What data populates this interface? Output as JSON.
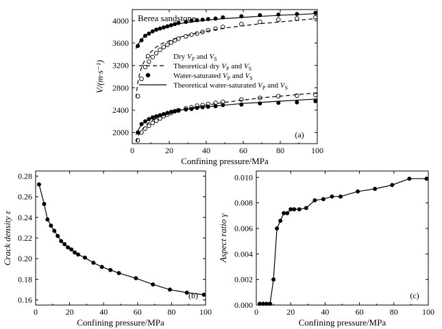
{
  "chart_data": [
    {
      "type": "scatter",
      "panel_label": "(a)",
      "annotation": "Berea sandstone",
      "xlabel": "Confining pressure/MPa",
      "ylabel": "V/(m·s⁻¹)",
      "xlim": [
        0,
        100
      ],
      "ylim": [
        1800,
        4200
      ],
      "xticks": [
        0,
        20,
        40,
        60,
        80,
        100
      ],
      "yticks": [
        2000,
        2400,
        2800,
        3200,
        3600,
        4000
      ],
      "grid": false,
      "legend_position": "center",
      "series": [
        {
          "name": "Dry V_P and V_S",
          "label_parts": [
            "Dry ",
            "V",
            "P",
            " and ",
            "V",
            "S"
          ],
          "marker": "open-circle",
          "group": "VP",
          "x": [
            3,
            5,
            7,
            9,
            11,
            13,
            15,
            17,
            19,
            21,
            23,
            25,
            29,
            32,
            35,
            38,
            41,
            45,
            49,
            59,
            69,
            79,
            89,
            99
          ],
          "y": [
            2650,
            2960,
            3170,
            3270,
            3350,
            3420,
            3480,
            3530,
            3570,
            3610,
            3650,
            3680,
            3720,
            3750,
            3770,
            3800,
            3830,
            3860,
            3890,
            3940,
            3980,
            4020,
            4040,
            4060
          ]
        },
        {
          "name": "Dry V_P and V_S",
          "label_parts": [
            "Dry ",
            "V",
            "P",
            " and ",
            "V",
            "S"
          ],
          "marker": "open-circle",
          "group": "VS",
          "legend": false,
          "x": [
            3,
            5,
            7,
            9,
            11,
            13,
            15,
            17,
            19,
            21,
            23,
            25,
            29,
            32,
            35,
            38,
            41,
            45,
            49,
            59,
            69,
            79,
            89,
            99
          ],
          "y": [
            1860,
            2000,
            2070,
            2120,
            2170,
            2210,
            2250,
            2290,
            2320,
            2350,
            2380,
            2400,
            2430,
            2450,
            2480,
            2490,
            2510,
            2530,
            2550,
            2590,
            2620,
            2650,
            2660,
            2670
          ]
        },
        {
          "name": "Theoretical dry V_P and V_S",
          "label_parts": [
            "Theoretical dry ",
            "V",
            "P",
            " and ",
            "V",
            "S"
          ],
          "line": "dashed",
          "group": "VP",
          "x": [
            2,
            3,
            4,
            5,
            6,
            8,
            10,
            13,
            16,
            20,
            25,
            30,
            35,
            40,
            50,
            60,
            70,
            80,
            90,
            100
          ],
          "y": [
            2620,
            2890,
            3060,
            3160,
            3240,
            3360,
            3440,
            3530,
            3590,
            3640,
            3700,
            3740,
            3780,
            3810,
            3870,
            3910,
            3950,
            3980,
            4010,
            4040
          ]
        },
        {
          "name": "Theoretical dry V_P and V_S",
          "label_parts": [
            "Theoretical dry ",
            "V",
            "P",
            " and ",
            "V",
            "S"
          ],
          "line": "dashed",
          "group": "VS",
          "legend": false,
          "x": [
            2,
            4,
            6,
            8,
            10,
            13,
            16,
            20,
            25,
            30,
            40,
            50,
            60,
            70,
            80,
            90,
            100
          ],
          "y": [
            1830,
            1990,
            2080,
            2150,
            2200,
            2260,
            2300,
            2350,
            2400,
            2430,
            2490,
            2540,
            2580,
            2620,
            2650,
            2680,
            2710
          ]
        },
        {
          "name": "Water-saturated V_P and V_S",
          "label_parts": [
            "Water-saturated ",
            "V",
            "P",
            " and ",
            "V",
            "S"
          ],
          "marker": "filled-circle",
          "group": "VP",
          "x": [
            3,
            5,
            7,
            9,
            11,
            13,
            15,
            17,
            19,
            21,
            23,
            25,
            29,
            32,
            35,
            38,
            41,
            45,
            49,
            59,
            69,
            79,
            89,
            99
          ],
          "y": [
            3550,
            3650,
            3730,
            3770,
            3810,
            3840,
            3860,
            3880,
            3900,
            3920,
            3940,
            3960,
            3980,
            4000,
            4010,
            4020,
            4030,
            4040,
            4060,
            4080,
            4100,
            4110,
            4120,
            4140
          ]
        },
        {
          "name": "Water-saturated V_P and V_S",
          "label_parts": [
            "Water-saturated ",
            "V",
            "P",
            " and ",
            "V",
            "S"
          ],
          "marker": "filled-circle",
          "group": "VS",
          "legend": false,
          "x": [
            3,
            5,
            7,
            9,
            11,
            13,
            15,
            17,
            19,
            21,
            23,
            25,
            29,
            32,
            35,
            38,
            41,
            45,
            49,
            59,
            69,
            79,
            89,
            99
          ],
          "y": [
            2000,
            2150,
            2200,
            2240,
            2270,
            2290,
            2310,
            2330,
            2350,
            2370,
            2380,
            2390,
            2410,
            2420,
            2440,
            2450,
            2460,
            2470,
            2490,
            2500,
            2520,
            2530,
            2540,
            2560
          ]
        },
        {
          "name": "Theoretical water-saturated V_P and V_S",
          "label_parts": [
            "Theoretical water-saturated ",
            "V",
            "P",
            " and ",
            "V",
            "S"
          ],
          "line": "solid",
          "group": "VP",
          "x": [
            2,
            4,
            6,
            8,
            10,
            14,
            18,
            22,
            26,
            30,
            40,
            50,
            60,
            70,
            80,
            90,
            100
          ],
          "y": [
            3500,
            3620,
            3700,
            3750,
            3790,
            3850,
            3890,
            3920,
            3950,
            3970,
            4010,
            4040,
            4060,
            4080,
            4100,
            4110,
            4130
          ]
        },
        {
          "name": "Theoretical water-saturated V_P and V_S",
          "label_parts": [
            "Theoretical water-saturated ",
            "V",
            "P",
            " and ",
            "V",
            "S"
          ],
          "line": "solid",
          "group": "VS",
          "legend": false,
          "x": [
            2,
            4,
            6,
            8,
            10,
            14,
            18,
            22,
            26,
            30,
            40,
            50,
            60,
            70,
            80,
            90,
            100
          ],
          "y": [
            1960,
            2090,
            2160,
            2210,
            2250,
            2300,
            2340,
            2370,
            2400,
            2420,
            2460,
            2490,
            2520,
            2540,
            2560,
            2580,
            2600
          ]
        }
      ]
    },
    {
      "type": "line",
      "panel_label": "(b)",
      "xlabel": "Confining pressure/MPa",
      "ylabel": "Crack density ε",
      "xlim": [
        0,
        100
      ],
      "ylim": [
        0.155,
        0.285
      ],
      "xticks": [
        0,
        20,
        40,
        60,
        80,
        100
      ],
      "yticks": [
        0.16,
        0.18,
        0.2,
        0.22,
        0.24,
        0.26,
        0.28
      ],
      "ytick_labels": [
        "0.16",
        "0.18",
        "0.20",
        "0.22",
        "0.24",
        "0.26",
        "0.28"
      ],
      "grid": false,
      "series": [
        {
          "marker": "filled-circle",
          "x": [
            2,
            5,
            7,
            9,
            11,
            13,
            15,
            17,
            19,
            21,
            23,
            25,
            29,
            34,
            39,
            44,
            49,
            59,
            69,
            79,
            89,
            99
          ],
          "y": [
            0.272,
            0.253,
            0.238,
            0.232,
            0.227,
            0.222,
            0.217,
            0.214,
            0.211,
            0.209,
            0.206,
            0.204,
            0.201,
            0.196,
            0.192,
            0.189,
            0.186,
            0.181,
            0.175,
            0.17,
            0.167,
            0.165
          ]
        }
      ]
    },
    {
      "type": "line",
      "panel_label": "(c)",
      "xlabel": "Confining pressure/MPa",
      "ylabel": "Aspect ratio γ",
      "xlim": [
        0,
        100
      ],
      "ylim": [
        0,
        0.0105
      ],
      "xticks": [
        0,
        20,
        40,
        60,
        80,
        100
      ],
      "yticks": [
        0,
        0.002,
        0.004,
        0.006,
        0.008,
        0.01
      ],
      "ytick_labels": [
        "0.000",
        "0.002",
        "0.004",
        "0.006",
        "0.008",
        "0.010"
      ],
      "grid": false,
      "series": [
        {
          "marker": "filled-circle",
          "x": [
            2,
            4,
            6,
            8,
            10,
            12,
            14,
            16,
            18,
            20,
            22,
            25,
            29,
            34,
            39,
            44,
            49,
            59,
            69,
            79,
            89,
            99
          ],
          "y": [
            0.0001,
            0.0001,
            0.0001,
            0.0001,
            0.002,
            0.006,
            0.0066,
            0.0072,
            0.0072,
            0.0075,
            0.0075,
            0.0075,
            0.0076,
            0.0082,
            0.0083,
            0.0085,
            0.0085,
            0.0089,
            0.0091,
            0.0094,
            0.0099,
            0.0099
          ]
        }
      ]
    }
  ]
}
